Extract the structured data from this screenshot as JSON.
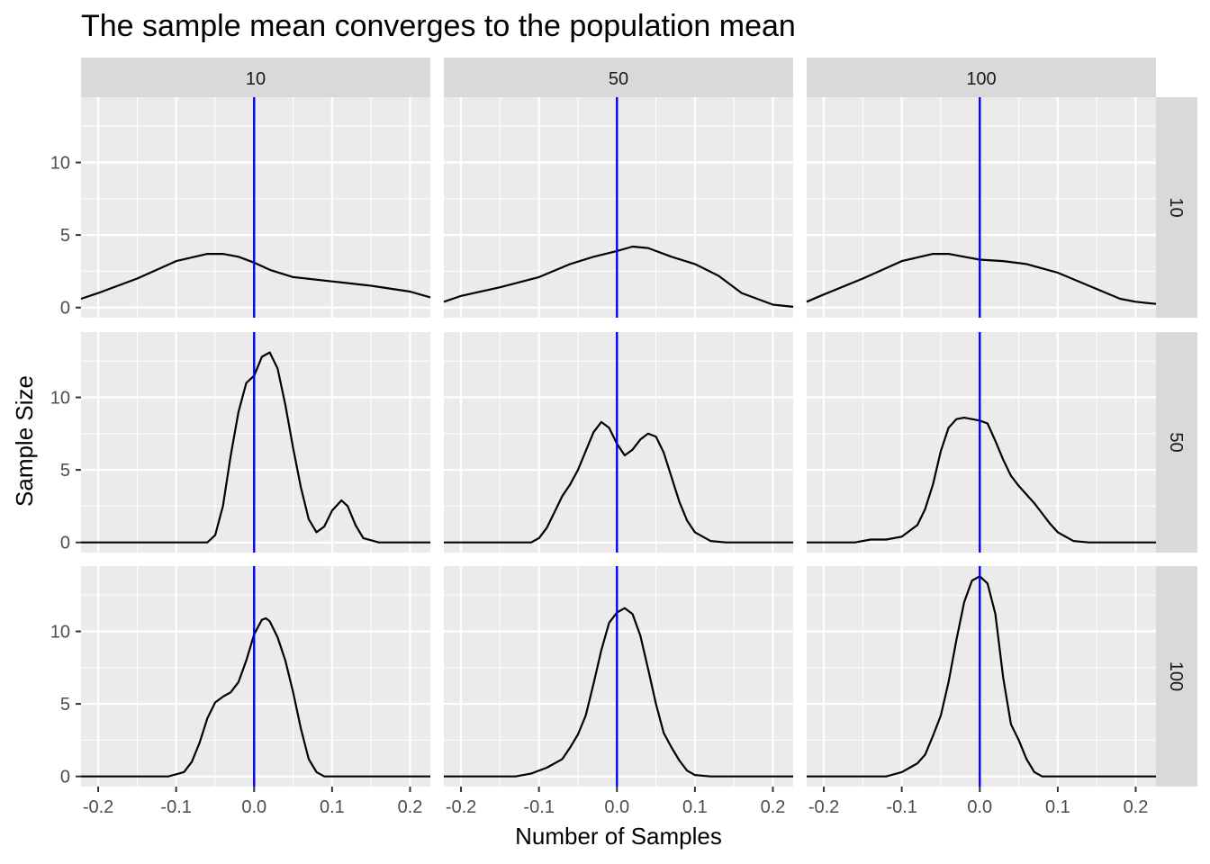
{
  "chart_data": {
    "type": "line",
    "title": "The sample mean converges to the population mean",
    "xlabel": "Number of Samples",
    "ylabel": "Sample Size",
    "xlim": [
      -0.222,
      0.226
    ],
    "ylim": [
      -0.7,
      14.5
    ],
    "x_ticks": [
      -0.2,
      -0.1,
      0.0,
      0.1,
      0.2
    ],
    "x_tick_labels": [
      "-0.2",
      "-0.1",
      "0.0",
      "0.1",
      "0.2"
    ],
    "y_ticks": [
      0,
      5,
      10
    ],
    "y_tick_labels": [
      "0",
      "5",
      "10"
    ],
    "column_facets": [
      "10",
      "50",
      "100"
    ],
    "row_facets": [
      "10",
      "50",
      "100"
    ],
    "grid": true,
    "reference_line": {
      "x": 0.0,
      "color": "#0000ff"
    },
    "colors": {
      "panel_background": "#ebebeb",
      "grid": "#ffffff",
      "strip_background": "#d9d9d9",
      "curve": "#000000",
      "reference": "#0000ff"
    },
    "panels": [
      {
        "row": "10",
        "col": "10",
        "points": [
          [
            -0.222,
            0.6
          ],
          [
            -0.2,
            1.0
          ],
          [
            -0.15,
            2.0
          ],
          [
            -0.1,
            3.2
          ],
          [
            -0.06,
            3.7
          ],
          [
            -0.04,
            3.7
          ],
          [
            -0.02,
            3.5
          ],
          [
            0.0,
            3.1
          ],
          [
            0.02,
            2.6
          ],
          [
            0.05,
            2.1
          ],
          [
            0.1,
            1.8
          ],
          [
            0.15,
            1.5
          ],
          [
            0.2,
            1.1
          ],
          [
            0.226,
            0.7
          ]
        ]
      },
      {
        "row": "10",
        "col": "50",
        "points": [
          [
            -0.222,
            0.4
          ],
          [
            -0.2,
            0.8
          ],
          [
            -0.15,
            1.4
          ],
          [
            -0.1,
            2.1
          ],
          [
            -0.06,
            3.0
          ],
          [
            -0.03,
            3.5
          ],
          [
            0.0,
            3.9
          ],
          [
            0.02,
            4.2
          ],
          [
            0.04,
            4.1
          ],
          [
            0.07,
            3.5
          ],
          [
            0.1,
            3.0
          ],
          [
            0.13,
            2.2
          ],
          [
            0.16,
            1.0
          ],
          [
            0.2,
            0.2
          ],
          [
            0.226,
            0.05
          ]
        ]
      },
      {
        "row": "10",
        "col": "100",
        "points": [
          [
            -0.222,
            0.4
          ],
          [
            -0.2,
            0.9
          ],
          [
            -0.15,
            2.0
          ],
          [
            -0.1,
            3.2
          ],
          [
            -0.06,
            3.7
          ],
          [
            -0.04,
            3.7
          ],
          [
            -0.02,
            3.5
          ],
          [
            0.0,
            3.3
          ],
          [
            0.03,
            3.2
          ],
          [
            0.06,
            3.0
          ],
          [
            0.1,
            2.4
          ],
          [
            0.14,
            1.5
          ],
          [
            0.18,
            0.6
          ],
          [
            0.2,
            0.4
          ],
          [
            0.226,
            0.25
          ]
        ]
      },
      {
        "row": "50",
        "col": "10",
        "points": [
          [
            -0.222,
            0.0
          ],
          [
            -0.06,
            0.0
          ],
          [
            -0.05,
            0.5
          ],
          [
            -0.04,
            2.5
          ],
          [
            -0.03,
            6.0
          ],
          [
            -0.02,
            9.0
          ],
          [
            -0.01,
            11.0
          ],
          [
            0.0,
            11.5
          ],
          [
            0.01,
            12.8
          ],
          [
            0.02,
            13.1
          ],
          [
            0.03,
            12.0
          ],
          [
            0.04,
            9.5
          ],
          [
            0.05,
            6.5
          ],
          [
            0.06,
            3.8
          ],
          [
            0.07,
            1.6
          ],
          [
            0.08,
            0.7
          ],
          [
            0.09,
            1.1
          ],
          [
            0.1,
            2.2
          ],
          [
            0.112,
            2.9
          ],
          [
            0.12,
            2.5
          ],
          [
            0.13,
            1.2
          ],
          [
            0.14,
            0.3
          ],
          [
            0.16,
            0.0
          ],
          [
            0.226,
            0.0
          ]
        ]
      },
      {
        "row": "50",
        "col": "50",
        "points": [
          [
            -0.222,
            0.0
          ],
          [
            -0.11,
            0.0
          ],
          [
            -0.1,
            0.3
          ],
          [
            -0.09,
            1.0
          ],
          [
            -0.08,
            2.1
          ],
          [
            -0.07,
            3.2
          ],
          [
            -0.06,
            4.0
          ],
          [
            -0.05,
            5.0
          ],
          [
            -0.04,
            6.3
          ],
          [
            -0.03,
            7.6
          ],
          [
            -0.02,
            8.3
          ],
          [
            -0.01,
            7.9
          ],
          [
            0.0,
            6.8
          ],
          [
            0.01,
            6.0
          ],
          [
            0.02,
            6.4
          ],
          [
            0.03,
            7.1
          ],
          [
            0.04,
            7.5
          ],
          [
            0.05,
            7.3
          ],
          [
            0.06,
            6.2
          ],
          [
            0.07,
            4.5
          ],
          [
            0.08,
            2.8
          ],
          [
            0.09,
            1.5
          ],
          [
            0.1,
            0.7
          ],
          [
            0.12,
            0.1
          ],
          [
            0.14,
            0.0
          ],
          [
            0.226,
            0.0
          ]
        ]
      },
      {
        "row": "50",
        "col": "100",
        "points": [
          [
            -0.222,
            0.0
          ],
          [
            -0.16,
            0.0
          ],
          [
            -0.14,
            0.2
          ],
          [
            -0.12,
            0.2
          ],
          [
            -0.1,
            0.4
          ],
          [
            -0.08,
            1.2
          ],
          [
            -0.07,
            2.3
          ],
          [
            -0.06,
            4.0
          ],
          [
            -0.05,
            6.3
          ],
          [
            -0.04,
            7.9
          ],
          [
            -0.03,
            8.5
          ],
          [
            -0.02,
            8.6
          ],
          [
            -0.01,
            8.5
          ],
          [
            0.0,
            8.4
          ],
          [
            0.01,
            8.2
          ],
          [
            0.02,
            7.0
          ],
          [
            0.03,
            5.7
          ],
          [
            0.04,
            4.6
          ],
          [
            0.05,
            3.9
          ],
          [
            0.06,
            3.3
          ],
          [
            0.07,
            2.7
          ],
          [
            0.08,
            2.0
          ],
          [
            0.09,
            1.3
          ],
          [
            0.1,
            0.7
          ],
          [
            0.12,
            0.1
          ],
          [
            0.14,
            0.0
          ],
          [
            0.226,
            0.0
          ]
        ]
      },
      {
        "row": "100",
        "col": "10",
        "points": [
          [
            -0.222,
            0.0
          ],
          [
            -0.11,
            0.0
          ],
          [
            -0.09,
            0.3
          ],
          [
            -0.08,
            1.0
          ],
          [
            -0.07,
            2.3
          ],
          [
            -0.06,
            4.0
          ],
          [
            -0.05,
            5.1
          ],
          [
            -0.04,
            5.5
          ],
          [
            -0.03,
            5.8
          ],
          [
            -0.02,
            6.5
          ],
          [
            -0.01,
            8.0
          ],
          [
            0.0,
            9.8
          ],
          [
            0.01,
            10.8
          ],
          [
            0.015,
            10.9
          ],
          [
            0.02,
            10.7
          ],
          [
            0.03,
            9.6
          ],
          [
            0.04,
            8.0
          ],
          [
            0.05,
            5.8
          ],
          [
            0.06,
            3.3
          ],
          [
            0.07,
            1.2
          ],
          [
            0.08,
            0.3
          ],
          [
            0.09,
            0.0
          ],
          [
            0.226,
            0.0
          ]
        ]
      },
      {
        "row": "100",
        "col": "50",
        "points": [
          [
            -0.222,
            0.0
          ],
          [
            -0.13,
            0.0
          ],
          [
            -0.11,
            0.2
          ],
          [
            -0.09,
            0.6
          ],
          [
            -0.07,
            1.2
          ],
          [
            -0.06,
            2.0
          ],
          [
            -0.05,
            2.9
          ],
          [
            -0.04,
            4.2
          ],
          [
            -0.03,
            6.4
          ],
          [
            -0.02,
            8.7
          ],
          [
            -0.01,
            10.6
          ],
          [
            0.0,
            11.3
          ],
          [
            0.01,
            11.6
          ],
          [
            0.02,
            11.2
          ],
          [
            0.03,
            9.7
          ],
          [
            0.04,
            7.4
          ],
          [
            0.05,
            5.0
          ],
          [
            0.06,
            3.0
          ],
          [
            0.07,
            2.0
          ],
          [
            0.08,
            1.1
          ],
          [
            0.09,
            0.4
          ],
          [
            0.1,
            0.1
          ],
          [
            0.12,
            0.0
          ],
          [
            0.226,
            0.0
          ]
        ]
      },
      {
        "row": "100",
        "col": "100",
        "points": [
          [
            -0.222,
            0.0
          ],
          [
            -0.12,
            0.0
          ],
          [
            -0.1,
            0.3
          ],
          [
            -0.08,
            0.9
          ],
          [
            -0.07,
            1.5
          ],
          [
            -0.06,
            2.8
          ],
          [
            -0.05,
            4.2
          ],
          [
            -0.04,
            6.5
          ],
          [
            -0.03,
            9.4
          ],
          [
            -0.02,
            12.0
          ],
          [
            -0.01,
            13.5
          ],
          [
            0.0,
            13.8
          ],
          [
            0.01,
            13.3
          ],
          [
            0.02,
            11.2
          ],
          [
            0.03,
            6.8
          ],
          [
            0.04,
            3.6
          ],
          [
            0.05,
            2.5
          ],
          [
            0.06,
            1.2
          ],
          [
            0.07,
            0.3
          ],
          [
            0.08,
            0.0
          ],
          [
            0.226,
            0.0
          ]
        ]
      }
    ]
  }
}
